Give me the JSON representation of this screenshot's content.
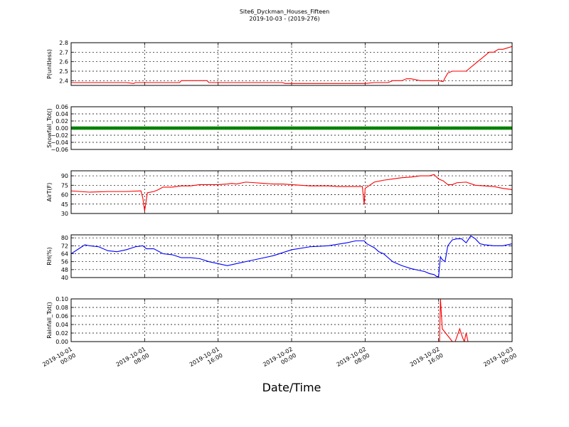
{
  "chart_data": {
    "type": "line",
    "title": "Site6_Dyckman_Houses_Fifteen",
    "subtitle": "2019-10-03 - (2019-276)",
    "xlabel": "Date/Time",
    "x_ticks": [
      [
        "2019-10-01",
        "00:00"
      ],
      [
        "2019-10-01",
        "08:00"
      ],
      [
        "2019-10-01",
        "16:00"
      ],
      [
        "2019-10-02",
        "00:00"
      ],
      [
        "2019-10-02",
        "08:00"
      ],
      [
        "2019-10-02",
        "16:00"
      ],
      [
        "2019-10-03",
        "00:00"
      ]
    ],
    "x_range_hours": [
      0,
      48
    ],
    "grid": true,
    "panels": [
      {
        "ylabel": "P(unitless)",
        "ylim": [
          2.35,
          2.8
        ],
        "yticks": [
          "2.4",
          "2.5",
          "2.6",
          "2.7",
          "2.8"
        ],
        "color": "#ff0000",
        "marker": false,
        "x_hours": [
          0,
          2,
          4,
          6,
          6.8,
          7,
          8,
          10,
          11.8,
          12,
          14,
          14.8,
          15,
          18,
          20,
          22,
          23,
          23.3,
          26,
          29,
          32,
          33,
          34.5,
          35,
          36,
          36.5,
          37,
          38,
          39,
          40,
          40.5,
          40.7,
          41,
          41.5,
          42,
          43,
          44,
          45,
          45.5,
          46,
          46.5,
          47,
          48
        ],
        "values": [
          2.38,
          2.38,
          2.38,
          2.38,
          2.37,
          2.38,
          2.38,
          2.38,
          2.38,
          2.4,
          2.4,
          2.4,
          2.38,
          2.38,
          2.38,
          2.38,
          2.38,
          2.37,
          2.37,
          2.37,
          2.37,
          2.38,
          2.38,
          2.4,
          2.4,
          2.42,
          2.42,
          2.4,
          2.4,
          2.4,
          2.39,
          2.43,
          2.48,
          2.5,
          2.5,
          2.5,
          2.58,
          2.66,
          2.7,
          2.7,
          2.73,
          2.73,
          2.76
        ]
      },
      {
        "ylabel": "Snowfall_Tot()",
        "ylim": [
          -0.06,
          0.06
        ],
        "yticks": [
          "−0.06",
          "−0.04",
          "−0.02",
          "0.00",
          "0.02",
          "0.04",
          "0.06"
        ],
        "color": "#008000",
        "marker": true,
        "x_hours": [
          0,
          48
        ],
        "values": [
          0,
          0
        ]
      },
      {
        "ylabel": "AirT(F)",
        "ylim": [
          30,
          98
        ],
        "yticks": [
          "30",
          "45",
          "60",
          "75",
          "90"
        ],
        "color": "#ff0000",
        "marker": false,
        "x_hours": [
          0,
          2,
          4,
          6,
          7.6,
          7.8,
          8,
          8.3,
          9,
          9.5,
          10,
          11,
          12,
          13,
          14,
          15,
          16,
          17,
          17.5,
          18,
          19,
          20,
          21,
          22,
          23,
          24,
          26,
          28,
          29,
          30,
          31,
          31.7,
          31.9,
          32,
          32.3,
          33,
          34,
          35,
          36,
          37,
          38,
          38.5,
          39,
          39.5,
          40,
          40.5,
          41,
          41.5,
          42,
          43,
          44,
          45,
          46,
          47,
          48
        ],
        "values": [
          66,
          64,
          65,
          65,
          66,
          55,
          34,
          63,
          65,
          68,
          72,
          72,
          74,
          74,
          76,
          76,
          76,
          77,
          78,
          77,
          80,
          79,
          78,
          77,
          77,
          76,
          74,
          74,
          73,
          73,
          73,
          73,
          44,
          70,
          73,
          80,
          83,
          85,
          87,
          88,
          90,
          90,
          90,
          92,
          85,
          82,
          76,
          76,
          79,
          80,
          75,
          74,
          73,
          70,
          68
        ]
      },
      {
        "ylabel": "RH(%)",
        "ylim": [
          40,
          83
        ],
        "yticks": [
          "40",
          "48",
          "56",
          "64",
          "72",
          "80"
        ],
        "color": "#0000ff",
        "marker": false,
        "x_hours": [
          0,
          1,
          1.5,
          2,
          3,
          4,
          5,
          6,
          7,
          7.8,
          8.2,
          9,
          10,
          11,
          12,
          13,
          14,
          15,
          16,
          17,
          18,
          20,
          22,
          24,
          26,
          28,
          30,
          31,
          31.9,
          32.2,
          33,
          33.5,
          34,
          35,
          36,
          37,
          38,
          38.5,
          39,
          39.5,
          39.8,
          40,
          40.2,
          40.4,
          40.7,
          41,
          41.5,
          42,
          42.5,
          43,
          43.5,
          44,
          44.5,
          45,
          46,
          47,
          48
        ],
        "values": [
          64,
          70,
          73,
          72,
          71,
          67,
          66,
          68,
          71,
          72,
          69,
          69,
          64,
          63,
          60,
          60,
          59,
          56,
          54,
          52,
          54,
          58,
          62,
          68,
          71,
          72,
          75,
          77,
          77,
          74,
          70,
          66,
          64,
          56,
          52,
          49,
          47,
          46,
          44,
          43,
          41,
          41,
          61,
          58,
          56,
          72,
          78,
          79,
          79,
          75,
          82,
          79,
          74,
          73,
          72,
          72,
          74
        ]
      },
      {
        "ylabel": "Rainfall_Tot()",
        "ylim": [
          0,
          0.1
        ],
        "yticks": [
          "0.00",
          "0.02",
          "0.04",
          "0.06",
          "0.08",
          "0.10"
        ],
        "color": "#ff0000",
        "marker": false,
        "x_hours": [
          0,
          39.9,
          40.1,
          40.2,
          40.4,
          41.5,
          41.8,
          42.3,
          42.6,
          42.8,
          43,
          43.2,
          43.3,
          48
        ],
        "values": [
          0,
          0,
          0,
          0.1,
          0.03,
          0,
          0,
          0.03,
          0.01,
          0,
          0.02,
          0,
          0,
          0
        ]
      }
    ]
  }
}
